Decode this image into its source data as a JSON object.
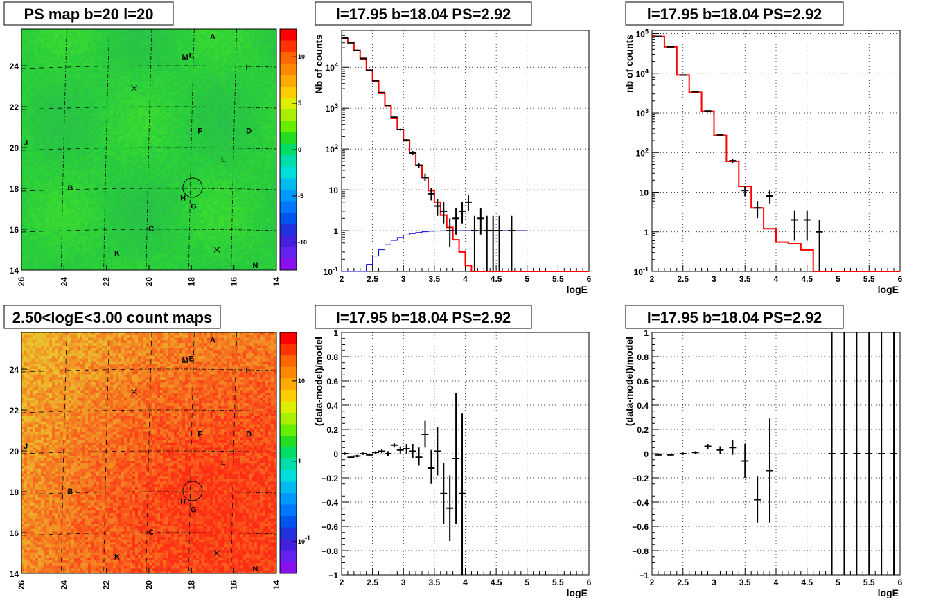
{
  "chart_data": [
    {
      "type": "heatmap",
      "panel": "top-left",
      "title": "PS map b=20 l=20",
      "xlim": [
        26,
        14
      ],
      "ylim": [
        14,
        25.8
      ],
      "x_ticks": [
        "26",
        "24",
        "22",
        "20",
        "18",
        "16",
        "14"
      ],
      "y_ticks": [
        "14",
        "16",
        "18",
        "20",
        "22",
        "24"
      ],
      "colorbar": {
        "scale": "linear",
        "range": [
          -13,
          13
        ],
        "ticks": [
          "10",
          "5",
          "0",
          "-5",
          "-10"
        ]
      },
      "base_color": "#22dd44",
      "markers": [
        {
          "text": "A",
          "l": 17.0,
          "b": 25.3
        },
        {
          "text": "E",
          "l": 18.0,
          "b": 24.4
        },
        {
          "text": "M",
          "l": 18.3,
          "b": 24.3
        },
        {
          "text": "I",
          "l": 15.4,
          "b": 23.8
        },
        {
          "text": "F",
          "l": 17.6,
          "b": 20.7
        },
        {
          "text": "D",
          "l": 15.3,
          "b": 20.7
        },
        {
          "text": "J",
          "l": 25.8,
          "b": 20.1
        },
        {
          "text": "L",
          "l": 16.5,
          "b": 19.3
        },
        {
          "text": "B",
          "l": 23.7,
          "b": 17.9
        },
        {
          "text": "H",
          "l": 18.4,
          "b": 17.4
        },
        {
          "text": "G",
          "l": 17.9,
          "b": 17.0
        },
        {
          "text": "C",
          "l": 19.9,
          "b": 15.9
        },
        {
          "text": "K",
          "l": 21.5,
          "b": 14.7
        },
        {
          "text": "N",
          "l": 15.0,
          "b": 14.1
        }
      ],
      "crosses": [
        {
          "l": 20.7,
          "b": 22.9
        },
        {
          "l": 16.8,
          "b": 15.0
        }
      ],
      "circle": {
        "l": 17.95,
        "b": 18.04
      }
    },
    {
      "type": "line",
      "panel": "top-middle",
      "title": "l=17.95 b=18.04 PS=2.92",
      "xlabel": "logE",
      "ylabel": "Nb of counts",
      "xlim": [
        2,
        6
      ],
      "ylim": [
        0.1,
        80000
      ],
      "yscale": "log",
      "x_ticks": [
        "2",
        "2.5",
        "3",
        "3.5",
        "4",
        "4.5",
        "5",
        "5.5",
        "6"
      ],
      "y_ticks": [
        "10-1",
        "1",
        "10",
        "102",
        "103",
        "104"
      ],
      "bin_edges": [
        2.0,
        2.1,
        2.2,
        2.3,
        2.4,
        2.5,
        2.6,
        2.7,
        2.8,
        2.9,
        3.0,
        3.1,
        3.2,
        3.3,
        3.4,
        3.5,
        3.6,
        3.7,
        3.8,
        3.9,
        4.0,
        4.1,
        4.2,
        4.3,
        4.4,
        4.5,
        4.6,
        4.7,
        4.8,
        4.9,
        5.0,
        5.1,
        5.2,
        5.3,
        5.4,
        5.5,
        5.6,
        5.7,
        5.8,
        5.9,
        6.0
      ],
      "series": [
        {
          "role": "model",
          "color": "#ff0000",
          "values": [
            50000,
            40000,
            26000,
            16000,
            8500,
            4600,
            2300,
            1150,
            560,
            300,
            160,
            80,
            40,
            20,
            9.5,
            5,
            2.4,
            1.2,
            0.6,
            0.3,
            0.14,
            0.1,
            0.1,
            0.1,
            0.1,
            0.1,
            0.1,
            0.1,
            0.1,
            0.1,
            0.1,
            0.1,
            0.1,
            0.1,
            0.1,
            0.1,
            0.1,
            0.1,
            0.1,
            0.1
          ]
        },
        {
          "role": "model-lower",
          "color": "#0000cc",
          "values": [
            0.1,
            0.1,
            0.1,
            0.1,
            0.15,
            0.24,
            0.34,
            0.46,
            0.58,
            0.68,
            0.78,
            0.85,
            0.9,
            0.94,
            0.97,
            0.98,
            0.99,
            1,
            1,
            1,
            1,
            1,
            1,
            1,
            1,
            1,
            1,
            1,
            1,
            1
          ]
        },
        {
          "role": "data",
          "color": "#000000",
          "points": [
            {
              "x": 2.05,
              "y": 52000,
              "lo": 51500,
              "hi": 52500
            },
            {
              "x": 2.15,
              "y": 40000,
              "lo": 39600,
              "hi": 40400
            },
            {
              "x": 2.25,
              "y": 26000,
              "lo": 25700,
              "hi": 26300
            },
            {
              "x": 2.35,
              "y": 16500,
              "lo": 16200,
              "hi": 16800
            },
            {
              "x": 2.45,
              "y": 8500,
              "lo": 8300,
              "hi": 8700
            },
            {
              "x": 2.55,
              "y": 4700,
              "lo": 4600,
              "hi": 4800
            },
            {
              "x": 2.65,
              "y": 2400,
              "lo": 2300,
              "hi": 2500
            },
            {
              "x": 2.75,
              "y": 1180,
              "lo": 1140,
              "hi": 1220
            },
            {
              "x": 2.85,
              "y": 600,
              "lo": 575,
              "hi": 625
            },
            {
              "x": 2.95,
              "y": 300,
              "lo": 283,
              "hi": 317
            },
            {
              "x": 3.05,
              "y": 165,
              "lo": 152,
              "hi": 178
            },
            {
              "x": 3.15,
              "y": 80,
              "lo": 71,
              "hi": 89
            },
            {
              "x": 3.25,
              "y": 40,
              "lo": 34,
              "hi": 46
            },
            {
              "x": 3.35,
              "y": 20,
              "lo": 16,
              "hi": 25
            },
            {
              "x": 3.45,
              "y": 8,
              "lo": 5.5,
              "hi": 11
            },
            {
              "x": 3.55,
              "y": 4,
              "lo": 2.3,
              "hi": 6
            },
            {
              "x": 3.65,
              "y": 3,
              "lo": 1.5,
              "hi": 5
            },
            {
              "x": 3.75,
              "y": 1,
              "lo": 0.4,
              "hi": 2
            },
            {
              "x": 3.85,
              "y": 2,
              "lo": 0.8,
              "hi": 3.5
            },
            {
              "x": 3.95,
              "y": 3,
              "lo": 1.5,
              "hi": 5
            },
            {
              "x": 4.05,
              "y": 5,
              "lo": 3,
              "hi": 7.5
            },
            {
              "x": 4.15,
              "y": 1,
              "lo": 0.1,
              "hi": 2.3
            },
            {
              "x": 4.25,
              "y": 2,
              "lo": 0.8,
              "hi": 3.5
            },
            {
              "x": 4.35,
              "y": 1,
              "lo": 0.1,
              "hi": 2.3
            },
            {
              "x": 4.45,
              "y": 1,
              "lo": 0.1,
              "hi": 2.3
            },
            {
              "x": 4.55,
              "y": 1,
              "lo": 0.1,
              "hi": 2.3
            },
            {
              "x": 4.75,
              "y": 1,
              "lo": 0.1,
              "hi": 2.3
            }
          ]
        }
      ]
    },
    {
      "type": "line",
      "panel": "top-right",
      "title": "l=17.95 b=18.04 PS=2.92",
      "xlabel": "logE",
      "ylabel": "nb of counts",
      "xlim": [
        2,
        6
      ],
      "ylim": [
        0.1,
        120000
      ],
      "yscale": "log",
      "x_ticks": [
        "2",
        "2.5",
        "3",
        "3.5",
        "4",
        "4.5",
        "5",
        "5.5",
        "6"
      ],
      "y_ticks": [
        "10-1",
        "1",
        "10",
        "102",
        "103",
        "104",
        "105"
      ],
      "bin_edges": [
        2.0,
        2.2,
        2.4,
        2.6,
        2.8,
        3.0,
        3.2,
        3.4,
        3.6,
        3.8,
        4.0,
        4.2,
        4.4,
        4.6,
        4.8,
        5.0,
        5.2,
        5.4,
        5.6,
        5.8,
        6.0
      ],
      "series": [
        {
          "role": "model",
          "color": "#ff0000",
          "values": [
            85000,
            46000,
            9000,
            3300,
            1100,
            270,
            60,
            14,
            4,
            1.2,
            0.55,
            0.5,
            0.35,
            0.1,
            0.1,
            0.1,
            0.1,
            0.1,
            0.1,
            0.1
          ]
        },
        {
          "role": "data",
          "color": "#000000",
          "points": [
            {
              "x": 2.1,
              "y": 85000,
              "lo": 84500,
              "hi": 85500
            },
            {
              "x": 2.3,
              "y": 46000,
              "lo": 45500,
              "hi": 46500
            },
            {
              "x": 2.5,
              "y": 9000,
              "lo": 8800,
              "hi": 9200
            },
            {
              "x": 2.7,
              "y": 3400,
              "lo": 3300,
              "hi": 3500
            },
            {
              "x": 2.9,
              "y": 1120,
              "lo": 1080,
              "hi": 1160
            },
            {
              "x": 3.1,
              "y": 280,
              "lo": 263,
              "hi": 297
            },
            {
              "x": 3.3,
              "y": 62,
              "lo": 54,
              "hi": 70
            },
            {
              "x": 3.5,
              "y": 11,
              "lo": 7.8,
              "hi": 14.5
            },
            {
              "x": 3.7,
              "y": 4,
              "lo": 2.2,
              "hi": 6
            },
            {
              "x": 3.9,
              "y": 8,
              "lo": 5.2,
              "hi": 11
            },
            {
              "x": 4.3,
              "y": 2,
              "lo": 0.6,
              "hi": 3.5
            },
            {
              "x": 4.5,
              "y": 2,
              "lo": 0.6,
              "hi": 3.5
            },
            {
              "x": 4.7,
              "y": 1,
              "lo": 0.1,
              "hi": 2
            }
          ]
        }
      ]
    },
    {
      "type": "heatmap",
      "panel": "bottom-left",
      "title": "2.50<logE<3.00 count maps",
      "xlim": [
        26,
        14
      ],
      "ylim": [
        14,
        25.8
      ],
      "x_ticks": [
        "26",
        "24",
        "22",
        "20",
        "18",
        "16",
        "14"
      ],
      "y_ticks": [
        "14",
        "16",
        "18",
        "20",
        "22",
        "24"
      ],
      "colorbar": {
        "scale": "log",
        "range": [
          0.04,
          40
        ],
        "ticks": [
          "10",
          "1",
          "10-1"
        ]
      },
      "base_color": "#ee7722",
      "markers": [
        {
          "text": "A",
          "l": 17.0,
          "b": 25.3
        },
        {
          "text": "E",
          "l": 18.0,
          "b": 24.4
        },
        {
          "text": "M",
          "l": 18.3,
          "b": 24.3
        },
        {
          "text": "I",
          "l": 15.4,
          "b": 23.8
        },
        {
          "text": "F",
          "l": 17.6,
          "b": 20.7
        },
        {
          "text": "D",
          "l": 15.3,
          "b": 20.7
        },
        {
          "text": "J",
          "l": 25.8,
          "b": 20.1
        },
        {
          "text": "L",
          "l": 16.5,
          "b": 19.3
        },
        {
          "text": "B",
          "l": 23.7,
          "b": 17.9
        },
        {
          "text": "H",
          "l": 18.4,
          "b": 17.4
        },
        {
          "text": "G",
          "l": 17.9,
          "b": 17.0
        },
        {
          "text": "C",
          "l": 19.9,
          "b": 15.9
        },
        {
          "text": "K",
          "l": 21.5,
          "b": 14.7
        },
        {
          "text": "N",
          "l": 15.0,
          "b": 14.1
        }
      ],
      "crosses": [
        {
          "l": 20.7,
          "b": 22.9
        },
        {
          "l": 16.8,
          "b": 15.0
        }
      ],
      "circle": {
        "l": 17.95,
        "b": 18.04
      }
    },
    {
      "type": "scatter",
      "panel": "bottom-middle",
      "title": "l=17.95 b=18.04 PS=2.92",
      "xlabel": "logE",
      "ylabel": "(data-model)/model",
      "xlim": [
        2,
        6
      ],
      "ylim": [
        -1,
        1
      ],
      "x_ticks": [
        "2",
        "2.5",
        "3",
        "3.5",
        "4",
        "4.5",
        "5",
        "5.5",
        "6"
      ],
      "y_ticks": [
        "−1",
        "−0.8",
        "−0.6",
        "−0.4",
        "−0.2",
        "0",
        "0.2",
        "0.4",
        "0.6",
        "0.8",
        "1"
      ],
      "points": [
        {
          "x": 2.05,
          "y": 0.0,
          "lo": -0.01,
          "hi": 0.01
        },
        {
          "x": 2.15,
          "y": -0.03,
          "lo": -0.04,
          "hi": -0.02
        },
        {
          "x": 2.25,
          "y": -0.02,
          "lo": -0.03,
          "hi": -0.01
        },
        {
          "x": 2.35,
          "y": 0.0,
          "lo": -0.01,
          "hi": 0.01
        },
        {
          "x": 2.45,
          "y": -0.01,
          "lo": -0.02,
          "hi": 0.0
        },
        {
          "x": 2.55,
          "y": 0.01,
          "lo": 0.0,
          "hi": 0.02
        },
        {
          "x": 2.65,
          "y": 0.02,
          "lo": 0.005,
          "hi": 0.035
        },
        {
          "x": 2.75,
          "y": 0.0,
          "lo": -0.02,
          "hi": 0.02
        },
        {
          "x": 2.85,
          "y": 0.07,
          "lo": 0.05,
          "hi": 0.09
        },
        {
          "x": 2.95,
          "y": 0.03,
          "lo": 0.0,
          "hi": 0.06
        },
        {
          "x": 3.05,
          "y": 0.04,
          "lo": 0.0,
          "hi": 0.08
        },
        {
          "x": 3.15,
          "y": 0.02,
          "lo": -0.04,
          "hi": 0.08
        },
        {
          "x": 3.25,
          "y": -0.03,
          "lo": -0.1,
          "hi": 0.05
        },
        {
          "x": 3.35,
          "y": 0.16,
          "lo": 0.05,
          "hi": 0.27
        },
        {
          "x": 3.45,
          "y": -0.12,
          "lo": -0.25,
          "hi": 0.03
        },
        {
          "x": 3.55,
          "y": 0.02,
          "lo": -0.18,
          "hi": 0.22
        },
        {
          "x": 3.65,
          "y": -0.33,
          "lo": -0.58,
          "hi": -0.08
        },
        {
          "x": 3.75,
          "y": -0.45,
          "lo": -0.72,
          "hi": -0.18
        },
        {
          "x": 3.85,
          "y": -0.04,
          "lo": -0.58,
          "hi": 0.5
        },
        {
          "x": 3.95,
          "y": -0.33,
          "lo": -1.0,
          "hi": 0.33
        }
      ]
    },
    {
      "type": "scatter",
      "panel": "bottom-right",
      "title": "l=17.95 b=18.04 PS=2.92",
      "xlabel": "logE",
      "ylabel": "(data-model)/model",
      "xlim": [
        2,
        6
      ],
      "ylim": [
        -1,
        1
      ],
      "x_ticks": [
        "2",
        "2.5",
        "3",
        "3.5",
        "4",
        "4.5",
        "5",
        "5.5",
        "6"
      ],
      "y_ticks": [
        "−1",
        "−0.8",
        "−0.6",
        "−0.4",
        "−0.2",
        "0",
        "0.2",
        "0.4",
        "0.6",
        "0.8",
        "1"
      ],
      "points": [
        {
          "x": 2.1,
          "y": -0.01,
          "lo": -0.02,
          "hi": 0.0
        },
        {
          "x": 2.3,
          "y": -0.01,
          "lo": -0.02,
          "hi": 0.0
        },
        {
          "x": 2.5,
          "y": 0.0,
          "lo": -0.01,
          "hi": 0.01
        },
        {
          "x": 2.7,
          "y": 0.01,
          "lo": 0.0,
          "hi": 0.02
        },
        {
          "x": 2.9,
          "y": 0.06,
          "lo": 0.04,
          "hi": 0.08
        },
        {
          "x": 3.1,
          "y": 0.03,
          "lo": 0.0,
          "hi": 0.06
        },
        {
          "x": 3.3,
          "y": 0.05,
          "lo": -0.01,
          "hi": 0.11
        },
        {
          "x": 3.5,
          "y": -0.06,
          "lo": -0.2,
          "hi": 0.08
        },
        {
          "x": 3.7,
          "y": -0.38,
          "lo": -0.57,
          "hi": -0.19
        },
        {
          "x": 3.9,
          "y": -0.14,
          "lo": -0.57,
          "hi": 0.29
        },
        {
          "x": 4.9,
          "y": 0.0,
          "lo": -1.0,
          "hi": 1.0
        },
        {
          "x": 5.1,
          "y": 0.0,
          "lo": -1.0,
          "hi": 1.0
        },
        {
          "x": 5.3,
          "y": 0.0,
          "lo": -1.0,
          "hi": 1.0
        },
        {
          "x": 5.5,
          "y": 0.0,
          "lo": -1.0,
          "hi": 1.0
        },
        {
          "x": 5.7,
          "y": 0.0,
          "lo": -1.0,
          "hi": 1.0
        },
        {
          "x": 5.9,
          "y": 0.0,
          "lo": -1.0,
          "hi": 1.0
        }
      ]
    }
  ]
}
